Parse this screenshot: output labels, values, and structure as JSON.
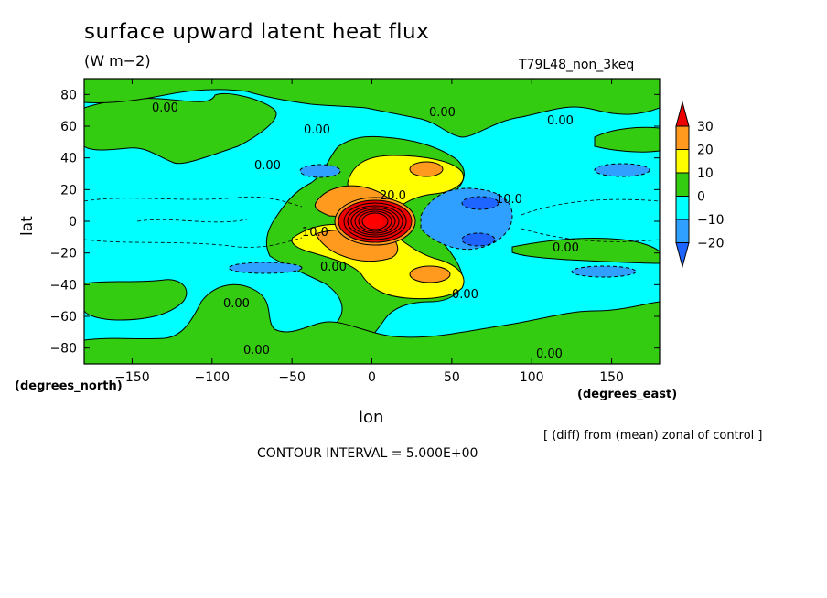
{
  "chart_data": {
    "type": "heatmap",
    "title": "surface upward latent heat flux",
    "subtitle": "(W m−2)",
    "run_label": "T79L48_non_3keq",
    "xlabel": "lon",
    "ylabel": "lat",
    "x_unit_label": "(degrees_east)",
    "y_unit_label": "(degrees_north)",
    "x_ticks": [
      "−150",
      "−100",
      "−50",
      "0",
      "50",
      "100",
      "150"
    ],
    "y_ticks": [
      "80",
      "60",
      "40",
      "20",
      "0",
      "−20",
      "−40",
      "−60",
      "−80"
    ],
    "xlim": [
      -180,
      180
    ],
    "ylim": [
      -90,
      90
    ],
    "colorbar": {
      "levels": [
        -20,
        -10,
        0,
        10,
        20,
        30
      ],
      "labels": [
        "30",
        "20",
        "10",
        "0",
        "−10",
        "−20"
      ],
      "colors": [
        "#ee0000",
        "#ff9a1e",
        "#ffff00",
        "#33cc11",
        "#00ffff",
        "#2fa0ff",
        "#1e64ff"
      ]
    },
    "contour_labels": [
      "0.00",
      "0.00",
      "0.00",
      "0.00",
      "0.00",
      "0.00",
      "0.00",
      "0.00",
      "0.00",
      "0.00",
      "0.00",
      "10.0",
      "10.0",
      "20.0"
    ],
    "features": [
      {
        "lon": 0,
        "lat": 0,
        "value": 35
      },
      {
        "lon": 30,
        "lat": 30,
        "value": 20
      },
      {
        "lon": 30,
        "lat": -30,
        "value": 20
      },
      {
        "lon": 60,
        "lat": 10,
        "value": -15
      },
      {
        "lon": 60,
        "lat": -12,
        "value": -15
      }
    ],
    "note": "[ (diff) from (mean) zonal of control ]",
    "contour_interval": "CONTOUR INTERVAL = 5.000E+00"
  }
}
